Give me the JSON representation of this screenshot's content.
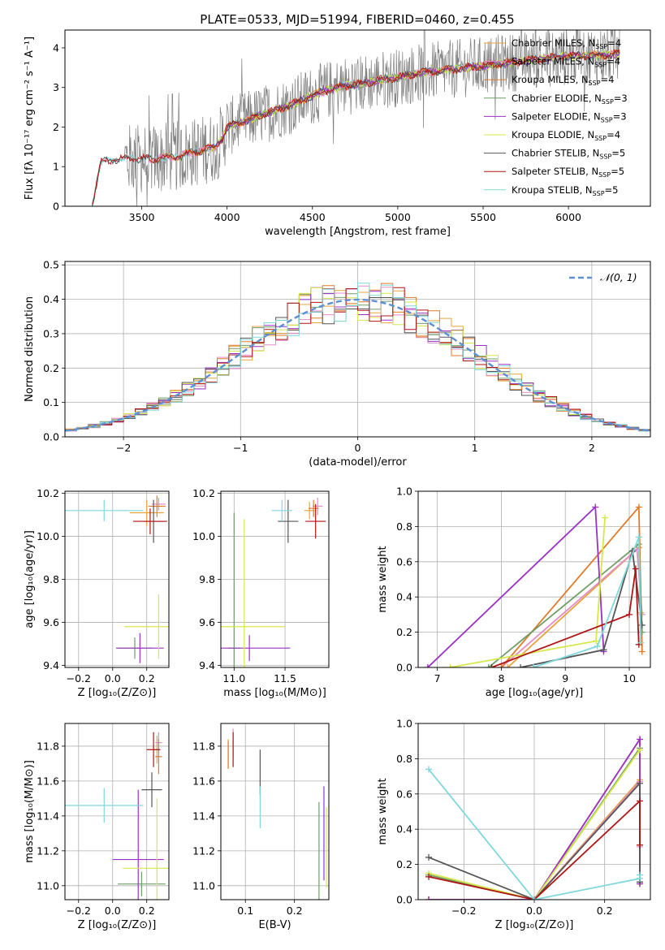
{
  "figure_title": "PLATE=0533, MJD=51994, FIBERID=0460, z=0.455",
  "colors": {
    "chabrier_miles": "#e8a33c",
    "salpeter_miles": "#e48cc8",
    "kroupa_miles": "#e07b2a",
    "chabrier_elodie": "#6f9e67",
    "salpeter_elodie": "#9b30c8",
    "kroupa_elodie": "#d6e84a",
    "chabrier_stelib": "#555555",
    "salpeter_stelib": "#b01515",
    "kroupa_stelib": "#7fd8dc",
    "gauss": "#5b8fd6",
    "data": "#7f7f7f",
    "grid": "#b0b0b0"
  },
  "chart_data": [
    {
      "id": "spectrum",
      "type": "line",
      "xlabel": "wavelength [Angstrom, rest frame]",
      "ylabel": "Flux [fλ 10⁻¹⁷ erg cm⁻² s⁻¹ A⁻¹]",
      "xlim": [
        3050,
        6480
      ],
      "ylim": [
        0,
        4.45
      ],
      "xticks": [
        3500,
        4000,
        4500,
        5000,
        5500,
        6000
      ],
      "yticks": [
        0,
        1,
        2,
        3,
        4
      ],
      "grid": false,
      "legend_position": "top-right",
      "legend": [
        {
          "label": "Chabrier MILES, N",
          "sub": "SSP",
          "tail": "=4",
          "color_key": "chabrier_miles"
        },
        {
          "label": "Salpeter MILES, N",
          "sub": "SSP",
          "tail": "=4",
          "color_key": "salpeter_miles"
        },
        {
          "label": "Kroupa MILES, N",
          "sub": "SSP",
          "tail": "=4",
          "color_key": "kroupa_miles"
        },
        {
          "label": "Chabrier ELODIE, N",
          "sub": "SSP",
          "tail": "=3",
          "color_key": "chabrier_elodie"
        },
        {
          "label": "Salpeter ELODIE, N",
          "sub": "SSP",
          "tail": "=3",
          "color_key": "salpeter_elodie"
        },
        {
          "label": "Kroupa ELODIE, N",
          "sub": "SSP",
          "tail": "=4",
          "color_key": "kroupa_elodie"
        },
        {
          "label": "Chabrier STELIB, N",
          "sub": "SSP",
          "tail": "=5",
          "color_key": "chabrier_stelib"
        },
        {
          "label": "Salpeter STELIB, N",
          "sub": "SSP",
          "tail": "=5",
          "color_key": "salpeter_stelib"
        },
        {
          "label": "Kroupa STELIB, N",
          "sub": "SSP",
          "tail": "=5",
          "color_key": "kroupa_stelib"
        }
      ],
      "continuum": {
        "x": [
          3210,
          3260,
          3300,
          3400,
          3500,
          3600,
          3700,
          3800,
          3880,
          3930,
          3970,
          4000,
          4100,
          4200,
          4300,
          4400,
          4500,
          4600,
          4700,
          4800,
          4900,
          5000,
          5100,
          5200,
          5300,
          5400,
          5500,
          5600,
          5700,
          5800,
          5900,
          6000,
          6100,
          6200,
          6300
        ],
        "y": [
          0.05,
          1.1,
          1.15,
          1.2,
          1.2,
          1.2,
          1.25,
          1.35,
          1.45,
          1.5,
          1.7,
          2.0,
          2.15,
          2.3,
          2.45,
          2.6,
          2.8,
          2.95,
          3.05,
          3.1,
          3.2,
          3.25,
          3.35,
          3.4,
          3.45,
          3.5,
          3.55,
          3.6,
          3.65,
          3.7,
          3.75,
          3.8,
          3.8,
          3.82,
          3.85
        ]
      },
      "noise_start": 3400,
      "model_end": 6300
    },
    {
      "id": "residuals",
      "type": "histogram",
      "xlabel": "(data-model)/error",
      "ylabel": "Normed distribution",
      "xlim": [
        -2.5,
        2.5
      ],
      "ylim": [
        0,
        0.51
      ],
      "xticks": [
        -2,
        -1,
        0,
        1,
        2
      ],
      "yticks": [
        0.0,
        0.1,
        0.2,
        0.3,
        0.4,
        0.5
      ],
      "grid": true,
      "legend_position": "top-right",
      "legend": [
        {
          "label": "𝒩(0, 1)",
          "color_key": "gauss"
        }
      ],
      "bin_start": -2.5,
      "bin_width": 0.1,
      "series_color_keys": [
        "chabrier_miles",
        "salpeter_miles",
        "kroupa_miles",
        "chabrier_elodie",
        "salpeter_elodie",
        "kroupa_elodie",
        "chabrier_stelib",
        "salpeter_stelib",
        "kroupa_stelib"
      ]
    },
    {
      "id": "age_vs_Z",
      "type": "errorbar",
      "xlabel": "Z [log₁₀(Z/Z⊙)]",
      "ylabel": "age  [log₁₀(age/yr)]",
      "xlim": [
        -0.28,
        0.33
      ],
      "ylim": [
        9.39,
        10.21
      ],
      "xticks": [
        -0.2,
        0.0,
        0.2
      ],
      "yticks": [
        9.4,
        9.6,
        9.8,
        10.0,
        10.2
      ],
      "grid": true,
      "points": [
        {
          "x": 0.2,
          "y": 10.11,
          "xerr": 0.1,
          "yerr": 0.06,
          "color_key": "chabrier_miles"
        },
        {
          "x": 0.27,
          "y": 10.15,
          "xerr": 0.04,
          "yerr": 0.03,
          "color_key": "salpeter_miles"
        },
        {
          "x": 0.26,
          "y": 10.14,
          "xerr": 0.05,
          "yerr": 0.05,
          "color_key": "kroupa_miles"
        },
        {
          "x": 0.13,
          "y": 9.48,
          "xerr": 0.1,
          "yerr": 0.05,
          "color_key": "chabrier_elodie"
        },
        {
          "x": 0.16,
          "y": 9.48,
          "xerr": 0.14,
          "yerr": 0.07,
          "color_key": "salpeter_elodie"
        },
        {
          "x": 0.27,
          "y": 9.58,
          "xerr": 0.2,
          "yerr": 0.15,
          "color_key": "kroupa_elodie"
        },
        {
          "x": 0.24,
          "y": 10.07,
          "xerr": 0.06,
          "yerr": 0.1,
          "color_key": "chabrier_stelib"
        },
        {
          "x": 0.22,
          "y": 10.07,
          "xerr": 0.1,
          "yerr": 0.06,
          "color_key": "salpeter_stelib"
        },
        {
          "x": -0.05,
          "y": 10.12,
          "xerr": 0.23,
          "yerr": 0.05,
          "color_key": "kroupa_stelib"
        }
      ]
    },
    {
      "id": "age_vs_mass",
      "type": "errorbar",
      "xlabel": "mass [log₁₀(M/M⊙)]",
      "ylabel": "",
      "xlim": [
        10.87,
        11.93
      ],
      "ylim": [
        9.39,
        10.21
      ],
      "xticks": [
        11.0,
        11.5
      ],
      "yticks": [
        9.4,
        9.6,
        9.8,
        10.0,
        10.2
      ],
      "grid": true,
      "points": [
        {
          "x": 11.74,
          "y": 10.12,
          "xerr": 0.05,
          "yerr": 0.04,
          "color_key": "chabrier_miles"
        },
        {
          "x": 11.82,
          "y": 10.14,
          "xerr": 0.05,
          "yerr": 0.04,
          "color_key": "salpeter_miles"
        },
        {
          "x": 11.78,
          "y": 10.13,
          "xerr": 0.05,
          "yerr": 0.04,
          "color_key": "kroupa_miles"
        },
        {
          "x": 11.0,
          "y": 9.48,
          "xerr": 0.06,
          "yerr": 0.63,
          "color_key": "chabrier_elodie"
        },
        {
          "x": 11.15,
          "y": 9.48,
          "xerr": 0.4,
          "yerr": 0.06,
          "color_key": "salpeter_elodie"
        },
        {
          "x": 11.1,
          "y": 9.58,
          "xerr": 0.4,
          "yerr": 0.5,
          "color_key": "kroupa_elodie"
        },
        {
          "x": 11.53,
          "y": 10.07,
          "xerr": 0.1,
          "yerr": 0.1,
          "color_key": "chabrier_stelib"
        },
        {
          "x": 11.8,
          "y": 10.07,
          "xerr": 0.1,
          "yerr": 0.08,
          "color_key": "salpeter_stelib"
        },
        {
          "x": 11.47,
          "y": 10.12,
          "xerr": 0.1,
          "yerr": 0.05,
          "color_key": "kroupa_stelib"
        }
      ]
    },
    {
      "id": "weight_vs_age",
      "type": "line",
      "xlabel": "age  [log₁₀(age/yr)]",
      "ylabel": "mass weight",
      "xlim": [
        6.7,
        10.33
      ],
      "ylim": [
        0,
        1.0
      ],
      "xticks": [
        7,
        8,
        9,
        10
      ],
      "yticks": [
        0.0,
        0.2,
        0.4,
        0.6,
        0.8,
        1.0
      ],
      "grid": true,
      "series": [
        {
          "color_key": "chabrier_miles",
          "x": [
            8.1,
            10.15,
            10.18
          ],
          "y": [
            0.0,
            0.68,
            0.31
          ]
        },
        {
          "color_key": "salpeter_miles",
          "x": [
            8.0,
            10.12,
            10.2
          ],
          "y": [
            0.0,
            0.67,
            0.3
          ]
        },
        {
          "color_key": "kroupa_miles",
          "x": [
            8.0,
            10.15,
            10.2
          ],
          "y": [
            0.0,
            0.91,
            0.09
          ]
        },
        {
          "color_key": "chabrier_elodie",
          "x": [
            7.8,
            10.15,
            10.2
          ],
          "y": [
            0.0,
            0.7,
            0.2
          ]
        },
        {
          "color_key": "salpeter_elodie",
          "x": [
            6.85,
            9.47,
            9.6
          ],
          "y": [
            0.0,
            0.91,
            0.09
          ]
        },
        {
          "color_key": "kroupa_elodie",
          "x": [
            7.2,
            9.48,
            9.62
          ],
          "y": [
            0.0,
            0.15,
            0.85
          ]
        },
        {
          "color_key": "chabrier_stelib",
          "x": [
            8.3,
            9.6,
            10.05,
            10.2
          ],
          "y": [
            0.0,
            0.1,
            0.66,
            0.24
          ]
        },
        {
          "color_key": "salpeter_stelib",
          "x": [
            7.85,
            10.0,
            10.1,
            10.15
          ],
          "y": [
            0.0,
            0.3,
            0.56,
            0.13
          ]
        },
        {
          "color_key": "kroupa_stelib",
          "x": [
            8.5,
            9.5,
            10.15,
            10.18
          ],
          "y": [
            0.0,
            0.12,
            0.74,
            0.14
          ]
        }
      ]
    },
    {
      "id": "mass_vs_Z",
      "type": "errorbar",
      "xlabel": "Z [log₁₀(Z/Z⊙)]",
      "ylabel": "mass [log₁₀(M/M⊙)]",
      "xlim": [
        -0.28,
        0.33
      ],
      "ylim": [
        10.92,
        11.93
      ],
      "xticks": [
        -0.2,
        0.0,
        0.2
      ],
      "yticks": [
        11.0,
        11.2,
        11.4,
        11.6,
        11.8
      ],
      "grid": true,
      "points": [
        {
          "x": 0.26,
          "y": 11.78,
          "xerr": 0.02,
          "yerr": 0.08,
          "color_key": "chabrier_miles"
        },
        {
          "x": 0.27,
          "y": 11.82,
          "xerr": 0.02,
          "yerr": 0.06,
          "color_key": "salpeter_miles"
        },
        {
          "x": 0.27,
          "y": 11.74,
          "xerr": 0.02,
          "yerr": 0.1,
          "color_key": "kroupa_miles"
        },
        {
          "x": 0.17,
          "y": 11.01,
          "xerr": 0.14,
          "yerr": 0.07,
          "color_key": "chabrier_elodie"
        },
        {
          "x": 0.15,
          "y": 11.15,
          "xerr": 0.15,
          "yerr": 0.4,
          "color_key": "salpeter_elodie"
        },
        {
          "x": 0.26,
          "y": 11.1,
          "xerr": 0.2,
          "yerr": 0.4,
          "color_key": "kroupa_elodie"
        },
        {
          "x": 0.23,
          "y": 11.55,
          "xerr": 0.06,
          "yerr": 0.1,
          "color_key": "chabrier_stelib"
        },
        {
          "x": 0.24,
          "y": 11.78,
          "xerr": 0.04,
          "yerr": 0.1,
          "color_key": "salpeter_stelib"
        },
        {
          "x": -0.05,
          "y": 11.46,
          "xerr": 0.23,
          "yerr": 0.1,
          "color_key": "kroupa_stelib"
        }
      ]
    },
    {
      "id": "mass_vs_ebv",
      "type": "errorbar",
      "xlabel": "E(B-V)",
      "ylabel": "",
      "xlim": [
        0.05,
        0.27
      ],
      "ylim": [
        10.92,
        11.93
      ],
      "xticks": [
        0.1,
        0.2
      ],
      "yticks": [
        11.0,
        11.2,
        11.4,
        11.6,
        11.8
      ],
      "grid": true,
      "points": [
        {
          "x": 0.065,
          "y": 11.76,
          "xerr": 0.0,
          "yerr": 0.08,
          "color_key": "chabrier_miles"
        },
        {
          "x": 0.075,
          "y": 11.82,
          "xerr": 0.0,
          "yerr": 0.08,
          "color_key": "salpeter_miles"
        },
        {
          "x": 0.065,
          "y": 11.75,
          "xerr": 0.0,
          "yerr": 0.08,
          "color_key": "kroupa_miles"
        },
        {
          "x": 0.25,
          "y": 11.2,
          "xerr": 0.0,
          "yerr": 0.28,
          "color_key": "chabrier_elodie"
        },
        {
          "x": 0.26,
          "y": 11.3,
          "xerr": 0.0,
          "yerr": 0.27,
          "color_key": "salpeter_elodie"
        },
        {
          "x": 0.265,
          "y": 11.22,
          "xerr": 0.0,
          "yerr": 0.23,
          "color_key": "kroupa_elodie"
        },
        {
          "x": 0.13,
          "y": 11.65,
          "xerr": 0.0,
          "yerr": 0.13,
          "color_key": "chabrier_stelib"
        },
        {
          "x": 0.075,
          "y": 11.78,
          "xerr": 0.0,
          "yerr": 0.1,
          "color_key": "salpeter_stelib"
        },
        {
          "x": 0.13,
          "y": 11.45,
          "xerr": 0.0,
          "yerr": 0.12,
          "color_key": "kroupa_stelib"
        }
      ]
    },
    {
      "id": "weight_vs_Z",
      "type": "line",
      "xlabel": "Z [log₁₀(Z/Z⊙)]",
      "ylabel": "mass weight",
      "xlim": [
        -0.33,
        0.33
      ],
      "ylim": [
        0,
        1.0
      ],
      "xticks": [
        -0.2,
        0.0,
        0.2
      ],
      "yticks": [
        0.0,
        0.2,
        0.4,
        0.6,
        0.8,
        1.0
      ],
      "grid": true,
      "series": [
        {
          "color_key": "chabrier_miles",
          "x": [
            -0.3,
            0.0,
            0.3,
            0.3
          ],
          "y": [
            0.0,
            0.0,
            0.68,
            0.31
          ]
        },
        {
          "color_key": "salpeter_miles",
          "x": [
            -0.3,
            0.0,
            0.3,
            0.3
          ],
          "y": [
            0.0,
            0.0,
            0.67,
            0.3
          ]
        },
        {
          "color_key": "kroupa_miles",
          "x": [
            -0.3,
            0.0,
            0.3,
            0.3
          ],
          "y": [
            0.0,
            0.0,
            0.91,
            0.09
          ]
        },
        {
          "color_key": "chabrier_elodie",
          "x": [
            -0.3,
            0.0,
            0.3
          ],
          "y": [
            0.14,
            0.0,
            0.86
          ]
        },
        {
          "color_key": "salpeter_elodie",
          "x": [
            -0.3,
            0.0,
            0.3,
            0.3
          ],
          "y": [
            0.0,
            0.0,
            0.91,
            0.09
          ]
        },
        {
          "color_key": "kroupa_elodie",
          "x": [
            -0.3,
            0.0,
            0.3
          ],
          "y": [
            0.15,
            0.0,
            0.85
          ]
        },
        {
          "color_key": "chabrier_stelib",
          "x": [
            -0.3,
            0.0,
            0.3,
            0.3
          ],
          "y": [
            0.24,
            0.0,
            0.66,
            0.1
          ]
        },
        {
          "color_key": "salpeter_stelib",
          "x": [
            -0.3,
            0.0,
            0.3,
            0.3
          ],
          "y": [
            0.13,
            0.0,
            0.56,
            0.31
          ]
        },
        {
          "color_key": "kroupa_stelib",
          "x": [
            -0.3,
            0.0,
            0.3,
            0.3
          ],
          "y": [
            0.74,
            0.0,
            0.12,
            0.14
          ]
        }
      ]
    }
  ]
}
